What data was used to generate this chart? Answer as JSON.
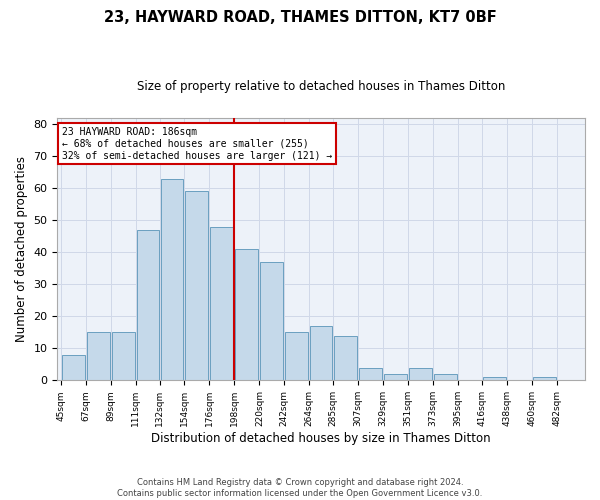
{
  "title": "23, HAYWARD ROAD, THAMES DITTON, KT7 0BF",
  "subtitle": "Size of property relative to detached houses in Thames Ditton",
  "xlabel": "Distribution of detached houses by size in Thames Ditton",
  "ylabel": "Number of detached properties",
  "bar_values": [
    8,
    15,
    15,
    47,
    63,
    59,
    48,
    41,
    37,
    15,
    17,
    14,
    4,
    2,
    4,
    2,
    0,
    1,
    0,
    1
  ],
  "tick_labels": [
    "45sqm",
    "67sqm",
    "89sqm",
    "111sqm",
    "132sqm",
    "154sqm",
    "176sqm",
    "198sqm",
    "220sqm",
    "242sqm",
    "264sqm",
    "285sqm",
    "307sqm",
    "329sqm",
    "351sqm",
    "373sqm",
    "395sqm",
    "416sqm",
    "438sqm",
    "460sqm",
    "482sqm"
  ],
  "bar_color": "#c5d9ea",
  "bar_edge_color": "#6a9fc0",
  "annotation_line1": "23 HAYWARD ROAD: 186sqm",
  "annotation_line2": "← 68% of detached houses are smaller (255)",
  "annotation_line3": "32% of semi-detached houses are larger (121) →",
  "annotation_box_color": "#ffffff",
  "annotation_box_edgecolor": "#cc0000",
  "vline_color": "#cc0000",
  "ylim": [
    0,
    82
  ],
  "yticks": [
    0,
    10,
    20,
    30,
    40,
    50,
    60,
    70,
    80
  ],
  "footer1": "Contains HM Land Registry data © Crown copyright and database right 2024.",
  "footer2": "Contains public sector information licensed under the Open Government Licence v3.0.",
  "bin_edges": [
    45,
    67,
    89,
    111,
    132,
    154,
    176,
    198,
    220,
    242,
    264,
    285,
    307,
    329,
    351,
    373,
    395,
    416,
    438,
    460,
    482
  ],
  "grid_color": "#d0d8e8",
  "background_color": "#edf2f9"
}
